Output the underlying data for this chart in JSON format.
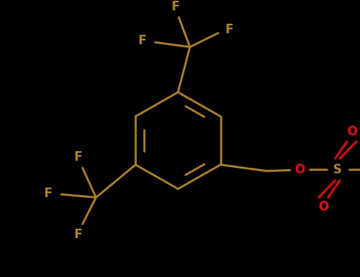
{
  "background_color": "#000000",
  "bond_color": "#b8860b",
  "bond_width": 1.8,
  "O_color": "#ff0000",
  "S_color": "#b8860b",
  "F_color": "#b8860b",
  "font_size_atom": 11,
  "fig_width": 4.55,
  "fig_height": 3.5,
  "dpi": 100,
  "xlim": [
    0,
    455
  ],
  "ylim": [
    0,
    350
  ]
}
